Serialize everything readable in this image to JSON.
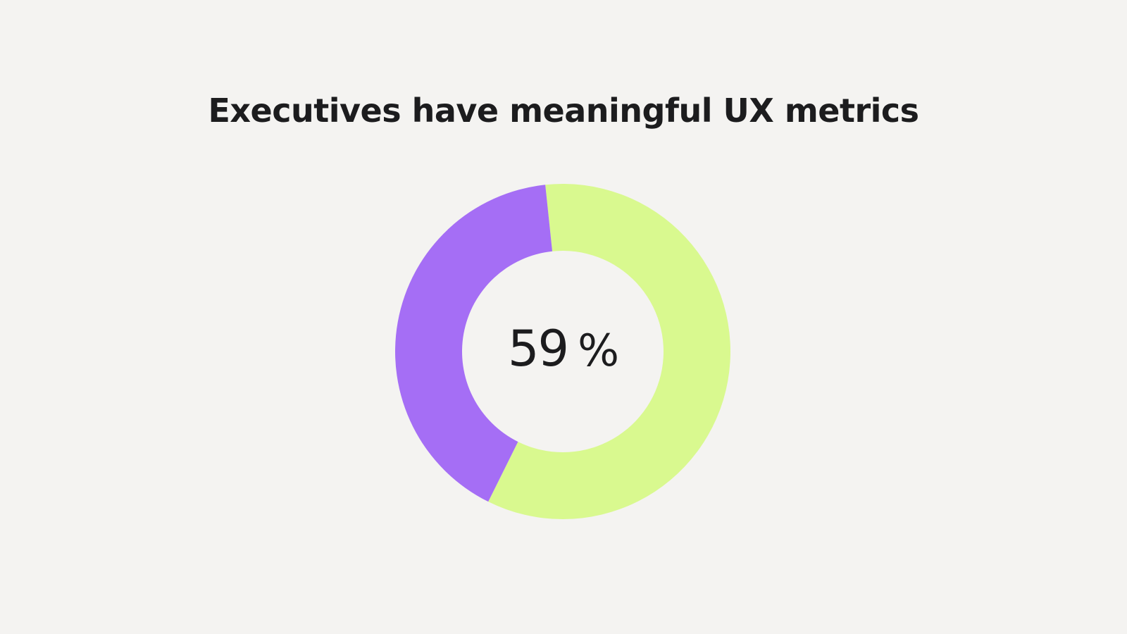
{
  "chart_data": {
    "type": "pie",
    "title": "Executives have meaningful UX metrics",
    "center_value": "59",
    "center_unit": "%",
    "slices": [
      {
        "value": 59,
        "color": "#d9f98f"
      },
      {
        "value": 41,
        "color": "#a56ef5"
      }
    ]
  },
  "colors": {
    "background": "#f4f3f1",
    "text": "#1c1c1e"
  }
}
